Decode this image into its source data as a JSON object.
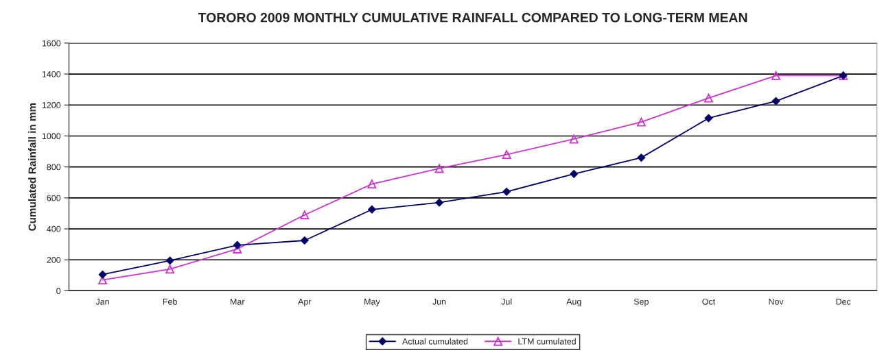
{
  "chart_data": {
    "type": "line",
    "title": "TORORO 2009 MONTHLY CUMULATIVE RAINFALL COMPARED TO LONG-TERM MEAN",
    "ylabel": "Cumulated Rainfall in mm",
    "categories": [
      "Jan",
      "Feb",
      "Mar",
      "Apr",
      "May",
      "Jun",
      "Jul",
      "Aug",
      "Sep",
      "Oct",
      "Nov",
      "Dec"
    ],
    "series": [
      {
        "name": "Actual cumulated",
        "color": "#000066",
        "marker": "diamond",
        "values": [
          105,
          195,
          295,
          325,
          525,
          570,
          640,
          755,
          860,
          1115,
          1225,
          1390
        ]
      },
      {
        "name": "LTM cumulated",
        "color": "#cc33cc",
        "marker": "triangle",
        "values": [
          70,
          140,
          270,
          490,
          690,
          790,
          880,
          980,
          1090,
          1245,
          1390,
          1390
        ]
      }
    ],
    "ylim": [
      0,
      1600
    ],
    "yticks": [
      0,
      200,
      400,
      600,
      800,
      1000,
      1200,
      1400,
      1600
    ],
    "grid": "y",
    "legend": "bottom"
  }
}
